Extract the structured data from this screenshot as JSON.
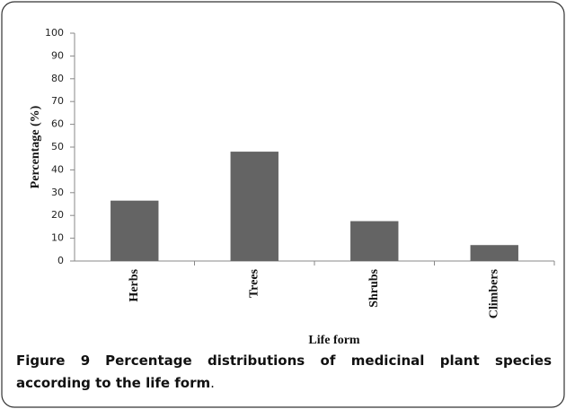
{
  "chart_data": {
    "type": "bar",
    "x_label": "Life form",
    "y_label": "Percentage (%)",
    "categories": [
      "Herbs",
      "Trees",
      "Shrubs",
      "Climbers"
    ],
    "values": [
      26.5,
      48,
      17.5,
      7
    ],
    "color": "#646464",
    "ylim": [
      0,
      100
    ],
    "yticks": [
      0,
      10,
      20,
      30,
      40,
      50,
      60,
      70,
      80,
      90,
      100
    ],
    "grid": false
  },
  "caption": {
    "label": "Figure 9",
    "text": "Percentage distributions of medicinal plant species according to the life form",
    "end": "."
  }
}
